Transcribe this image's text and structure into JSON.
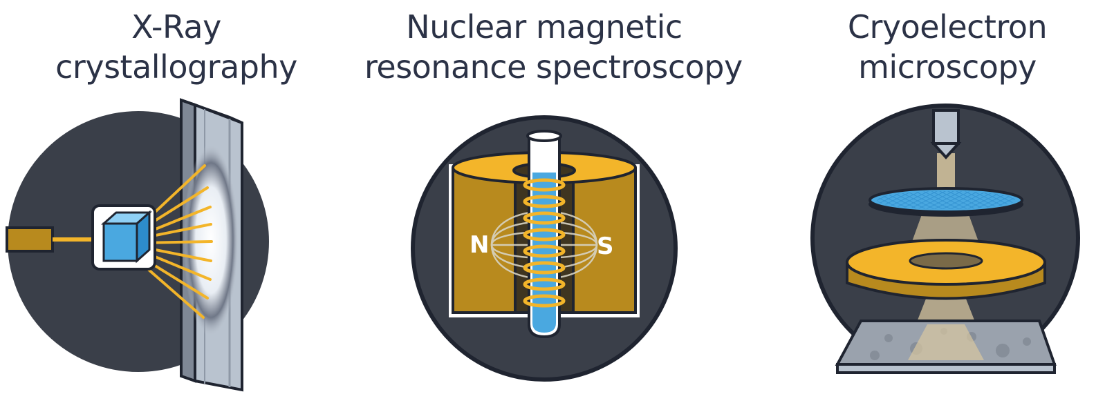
{
  "panels": [
    {
      "id": "xray",
      "title_lines": [
        "X-Ray",
        "crystallography"
      ]
    },
    {
      "id": "nmr",
      "title_lines": [
        "Nuclear magnetic",
        "resonance spectroscopy"
      ],
      "pole_north": "N",
      "pole_south": "S"
    },
    {
      "id": "cryoem",
      "title_lines": [
        "Cryoelectron",
        "microscopy"
      ]
    }
  ],
  "colors": {
    "circle": "#3a3f49",
    "outline": "#1f2430",
    "gold": "#f3b52a",
    "gold_dark": "#b88a1e",
    "blue": "#4aa8e0",
    "light_blue": "#8fd0f5",
    "screen": "#b9c3cf",
    "beam": "#d9c8a0"
  }
}
